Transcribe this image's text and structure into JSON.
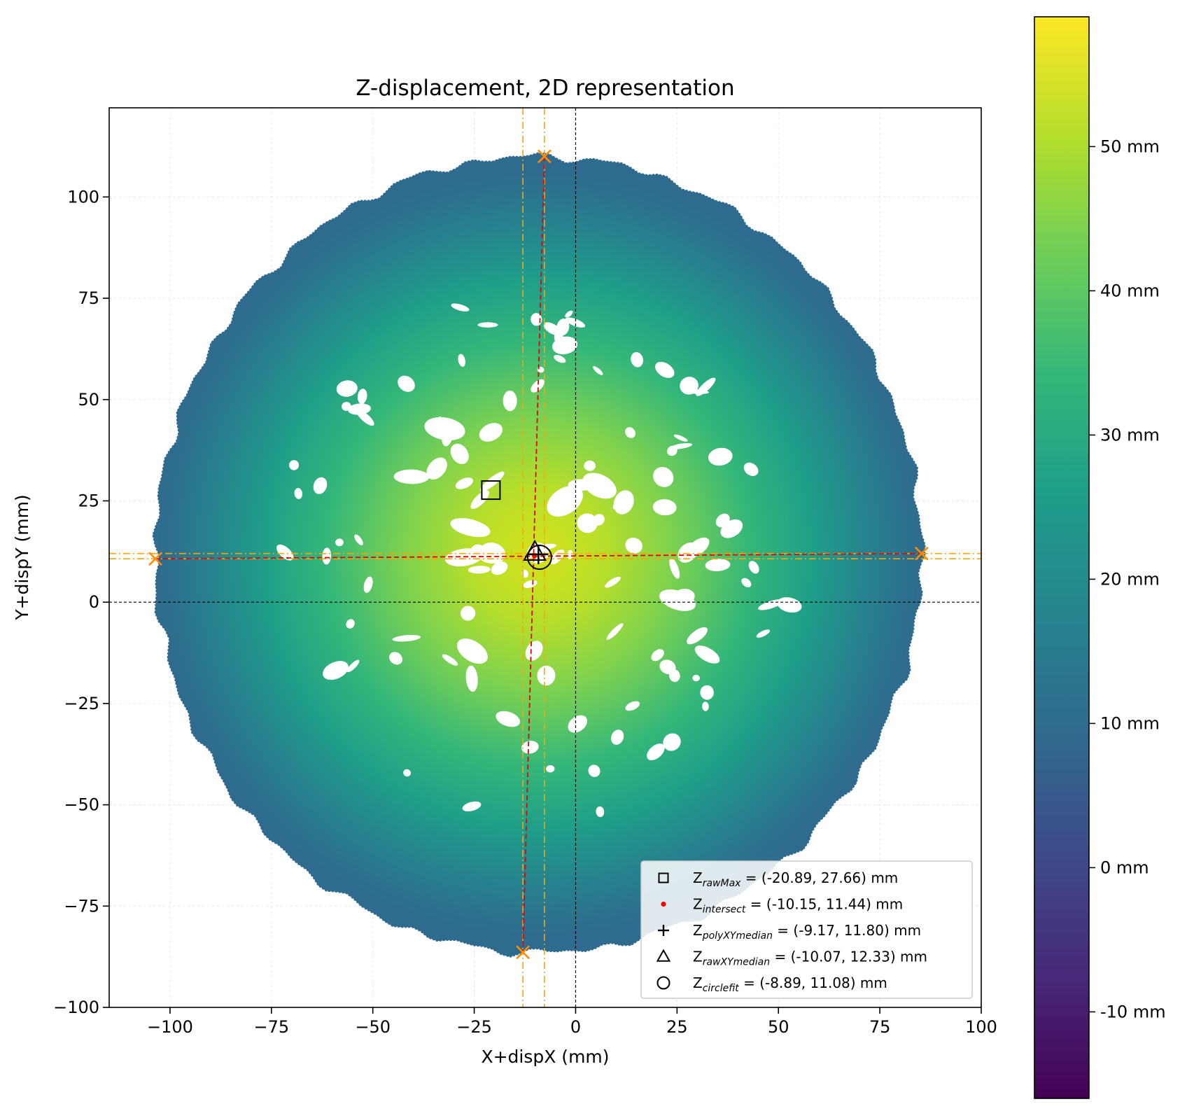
{
  "chart_data": {
    "type": "scatter",
    "title": "Z-displacement, 2D representation",
    "xlabel": "X+dispX (mm)",
    "ylabel": "Y+dispY (mm)",
    "xlim": [
      -115,
      100
    ],
    "ylim": [
      -100,
      122
    ],
    "xticks": [
      -100,
      -75,
      -50,
      -25,
      0,
      25,
      50,
      75,
      100
    ],
    "xtick_labels": [
      "−100",
      "−75",
      "−50",
      "−25",
      "0",
      "25",
      "50",
      "75",
      "100"
    ],
    "yticks": [
      -100,
      -75,
      -50,
      -25,
      0,
      25,
      50,
      75,
      100
    ],
    "ytick_labels": [
      "−100",
      "−75",
      "−50",
      "−25",
      "0",
      "25",
      "50",
      "75",
      "100"
    ],
    "grid": true,
    "colormap": "viridis",
    "colorbar": {
      "range": [
        -16,
        59
      ],
      "ticks": [
        -10,
        0,
        10,
        20,
        30,
        40,
        50
      ],
      "tick_labels": [
        "-10 mm",
        "0 mm",
        "10 mm",
        "20 mm",
        "30 mm",
        "40 mm",
        "50 mm"
      ]
    },
    "surface": {
      "description_values": "radial Z-displacement field",
      "peak": {
        "x": -9.2,
        "y": 11.8,
        "z": 58
      },
      "edge_z": 12,
      "boundary_extrema": {
        "left_x": -103.6,
        "right_x": 85.3,
        "top_y": 110,
        "bottom_y": -86.4
      }
    },
    "markers": [
      {
        "name_main": "Z",
        "name_sub": "rawMax",
        "value_text": " = (-20.89, 27.66) mm",
        "x": -20.89,
        "y": 27.66,
        "symbol": "square"
      },
      {
        "name_main": "Z",
        "name_sub": "intersect",
        "value_text": " = (-10.15, 11.44) mm",
        "x": -10.15,
        "y": 11.44,
        "symbol": "red-dot"
      },
      {
        "name_main": "Z",
        "name_sub": "polyXYmedian",
        "value_text": " = (-9.17, 11.80) mm",
        "x": -9.17,
        "y": 11.8,
        "symbol": "plus"
      },
      {
        "name_main": "Z",
        "name_sub": "rawXYmedian",
        "value_text": " = (-10.07, 12.33) mm",
        "x": -10.07,
        "y": 12.33,
        "symbol": "triangle"
      },
      {
        "name_main": "Z",
        "name_sub": "circlefit",
        "value_text": " = (-8.89, 11.08) mm",
        "x": -8.89,
        "y": 11.08,
        "symbol": "circle"
      }
    ],
    "extreme_points": [
      {
        "x": -7.7,
        "y": 110
      },
      {
        "x": -13.0,
        "y": -86.4
      },
      {
        "x": -103.6,
        "y": 10.7
      },
      {
        "x": 85.3,
        "y": 12.0
      }
    ],
    "vertical_fit_line": {
      "x_top": -7.7,
      "y_top": 110,
      "x_bottom": -13.0,
      "y_bottom": -86.4
    },
    "horizontal_fit_line": {
      "x_left": -103.6,
      "y_left": 10.7,
      "x_right": 85.3,
      "y_right": 12.0
    },
    "vertical_band_x": [
      -13.0,
      -7.7
    ],
    "horizontal_band_y": [
      10.7,
      12.0
    ],
    "zero_lines": {
      "x": 0,
      "y": 0
    },
    "legend_position": "lower right"
  }
}
